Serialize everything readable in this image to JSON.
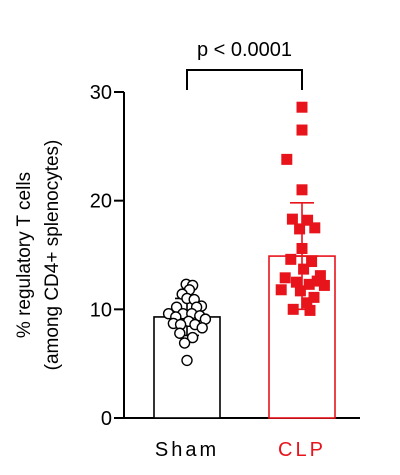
{
  "chart_data": {
    "type": "bar",
    "title": "",
    "ylabel_lines": [
      "% regulatory T cells",
      "(among CD4+ splenocytes)"
    ],
    "xlabel": "",
    "ylim": [
      0,
      30
    ],
    "yticks": [
      0,
      10,
      20,
      30
    ],
    "annotation": "p < 0.0001",
    "categories": [
      "Sham",
      "CLP"
    ],
    "series": [
      {
        "category": "Sham",
        "color": "#000000",
        "label_color": "#000000",
        "marker": "open-circle",
        "mean": 9.3,
        "sd_lower": 7.6,
        "sd_upper": 11.0,
        "points": [
          {
            "y": 12.3,
            "dx": -0.02
          },
          {
            "y": 12.2,
            "dx": 0.14
          },
          {
            "y": 11.8,
            "dx": 0.06
          },
          {
            "y": 11.4,
            "dx": -0.12
          },
          {
            "y": 11.0,
            "dx": 0.0
          },
          {
            "y": 10.9,
            "dx": 0.18
          },
          {
            "y": 10.3,
            "dx": 0.36
          },
          {
            "y": 10.2,
            "dx": -0.26
          },
          {
            "y": 10.2,
            "dx": 0.24
          },
          {
            "y": 9.6,
            "dx": -0.46
          },
          {
            "y": 9.6,
            "dx": -0.1
          },
          {
            "y": 9.6,
            "dx": 0.12
          },
          {
            "y": 9.4,
            "dx": 0.32
          },
          {
            "y": 9.3,
            "dx": -0.28
          },
          {
            "y": 9.1,
            "dx": 0.46
          },
          {
            "y": 8.9,
            "dx": 0.04
          },
          {
            "y": 8.7,
            "dx": -0.34
          },
          {
            "y": 8.6,
            "dx": -0.16
          },
          {
            "y": 8.6,
            "dx": 0.2
          },
          {
            "y": 8.3,
            "dx": 0.38
          },
          {
            "y": 7.8,
            "dx": -0.18
          },
          {
            "y": 7.4,
            "dx": 0.14
          },
          {
            "y": 6.9,
            "dx": -0.06
          },
          {
            "y": 5.3,
            "dx": 0.0
          }
        ]
      },
      {
        "category": "CLP",
        "color": "#e8141c",
        "label_color": "#e8141c",
        "marker": "filled-square",
        "mean": 14.9,
        "sd_lower": 10.0,
        "sd_upper": 19.8,
        "points": [
          {
            "y": 28.6,
            "dx": 0.0
          },
          {
            "y": 26.5,
            "dx": 0.0
          },
          {
            "y": 23.8,
            "dx": -0.38
          },
          {
            "y": 21.0,
            "dx": 0.0
          },
          {
            "y": 18.3,
            "dx": -0.24
          },
          {
            "y": 18.2,
            "dx": 0.14
          },
          {
            "y": 17.5,
            "dx": 0.32
          },
          {
            "y": 17.4,
            "dx": -0.06
          },
          {
            "y": 15.6,
            "dx": 0.0
          },
          {
            "y": 14.6,
            "dx": -0.28
          },
          {
            "y": 14.4,
            "dx": 0.24
          },
          {
            "y": 13.7,
            "dx": 0.04
          },
          {
            "y": 13.1,
            "dx": 0.46
          },
          {
            "y": 12.9,
            "dx": -0.42
          },
          {
            "y": 12.6,
            "dx": 0.38
          },
          {
            "y": 12.5,
            "dx": -0.14
          },
          {
            "y": 12.3,
            "dx": 0.18
          },
          {
            "y": 12.2,
            "dx": 0.56
          },
          {
            "y": 11.8,
            "dx": -0.52
          },
          {
            "y": 11.7,
            "dx": -0.04
          },
          {
            "y": 11.1,
            "dx": 0.3
          },
          {
            "y": 10.6,
            "dx": 0.12
          },
          {
            "y": 10.0,
            "dx": -0.22
          },
          {
            "y": 9.9,
            "dx": 0.2
          }
        ]
      }
    ]
  }
}
